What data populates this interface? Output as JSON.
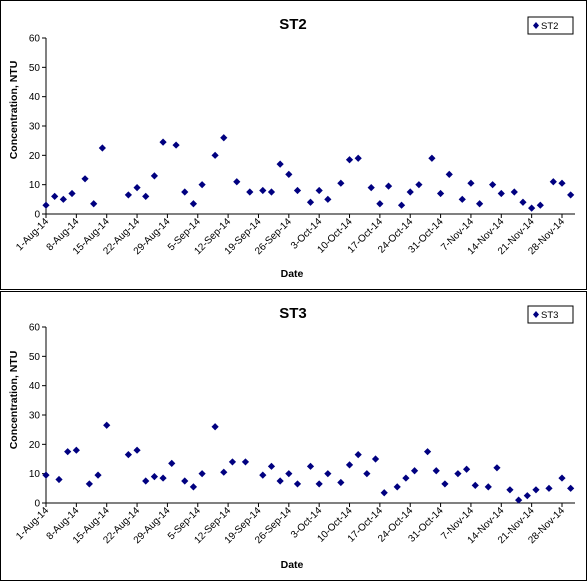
{
  "chart_data": [
    {
      "type": "scatter",
      "title": "ST2",
      "xlabel": "Date",
      "ylabel": "Concentration, NTU",
      "ylim": [
        0,
        60
      ],
      "yticks": [
        0,
        10,
        20,
        30,
        40,
        50,
        60
      ],
      "xlim": [
        "1-Aug-14",
        "1-Dec-14"
      ],
      "xtick_labels": [
        "1-Aug-14",
        "8-Aug-14",
        "15-Aug-14",
        "22-Aug-14",
        "29-Aug-14",
        "5-Sep-14",
        "12-Sep-14",
        "19-Sep-14",
        "26-Sep-14",
        "3-Oct-14",
        "10-Oct-14",
        "17-Oct-14",
        "24-Oct-14",
        "31-Oct-14",
        "7-Nov-14",
        "14-Nov-14",
        "21-Nov-14",
        "28-Nov-14"
      ],
      "grid": false,
      "legend_position": "top-right",
      "series": [
        {
          "name": "ST2",
          "color": "#000080",
          "marker": "diamond",
          "points": [
            [
              "1-Aug-14",
              3
            ],
            [
              "3-Aug-14",
              6
            ],
            [
              "5-Aug-14",
              5
            ],
            [
              "7-Aug-14",
              7
            ],
            [
              "10-Aug-14",
              12
            ],
            [
              "12-Aug-14",
              3.5
            ],
            [
              "14-Aug-14",
              22.5
            ],
            [
              "20-Aug-14",
              6.5
            ],
            [
              "22-Aug-14",
              9
            ],
            [
              "24-Aug-14",
              6
            ],
            [
              "26-Aug-14",
              13
            ],
            [
              "28-Aug-14",
              24.5
            ],
            [
              "31-Aug-14",
              23.5
            ],
            [
              "2-Sep-14",
              7.5
            ],
            [
              "4-Sep-14",
              3.5
            ],
            [
              "6-Sep-14",
              10
            ],
            [
              "9-Sep-14",
              20
            ],
            [
              "11-Sep-14",
              26
            ],
            [
              "14-Sep-14",
              11
            ],
            [
              "17-Sep-14",
              7.5
            ],
            [
              "20-Sep-14",
              8
            ],
            [
              "22-Sep-14",
              7.5
            ],
            [
              "24-Sep-14",
              17
            ],
            [
              "26-Sep-14",
              13.5
            ],
            [
              "28-Sep-14",
              8
            ],
            [
              "1-Oct-14",
              4
            ],
            [
              "3-Oct-14",
              8
            ],
            [
              "5-Oct-14",
              5
            ],
            [
              "8-Oct-14",
              10.5
            ],
            [
              "10-Oct-14",
              18.5
            ],
            [
              "12-Oct-14",
              19
            ],
            [
              "15-Oct-14",
              9
            ],
            [
              "17-Oct-14",
              3.5
            ],
            [
              "19-Oct-14",
              9.5
            ],
            [
              "22-Oct-14",
              3
            ],
            [
              "24-Oct-14",
              7.5
            ],
            [
              "26-Oct-14",
              10
            ],
            [
              "29-Oct-14",
              19
            ],
            [
              "31-Oct-14",
              7
            ],
            [
              "2-Nov-14",
              13.5
            ],
            [
              "5-Nov-14",
              5
            ],
            [
              "7-Nov-14",
              10.5
            ],
            [
              "9-Nov-14",
              3.5
            ],
            [
              "12-Nov-14",
              10
            ],
            [
              "14-Nov-14",
              7
            ],
            [
              "17-Nov-14",
              7.5
            ],
            [
              "19-Nov-14",
              4
            ],
            [
              "21-Nov-14",
              2
            ],
            [
              "23-Nov-14",
              3
            ],
            [
              "26-Nov-14",
              11
            ],
            [
              "28-Nov-14",
              10.5
            ],
            [
              "30-Nov-14",
              6.5
            ]
          ]
        }
      ]
    },
    {
      "type": "scatter",
      "title": "ST3",
      "xlabel": "Date",
      "ylabel": "Concentration, NTU",
      "ylim": [
        0,
        60
      ],
      "yticks": [
        0,
        10,
        20,
        30,
        40,
        50,
        60
      ],
      "xlim": [
        "1-Aug-14",
        "1-Dec-14"
      ],
      "xtick_labels": [
        "1-Aug-14",
        "8-Aug-14",
        "15-Aug-14",
        "22-Aug-14",
        "29-Aug-14",
        "5-Sep-14",
        "12-Sep-14",
        "19-Sep-14",
        "26-Sep-14",
        "3-Oct-14",
        "10-Oct-14",
        "17-Oct-14",
        "24-Oct-14",
        "31-Oct-14",
        "7-Nov-14",
        "14-Nov-14",
        "21-Nov-14",
        "28-Nov-14"
      ],
      "grid": false,
      "legend_position": "top-right",
      "series": [
        {
          "name": "ST3",
          "color": "#000080",
          "marker": "diamond",
          "points": [
            [
              "1-Aug-14",
              9.5
            ],
            [
              "4-Aug-14",
              8
            ],
            [
              "6-Aug-14",
              17.5
            ],
            [
              "8-Aug-14",
              18
            ],
            [
              "11-Aug-14",
              6.5
            ],
            [
              "13-Aug-14",
              9.5
            ],
            [
              "15-Aug-14",
              26.5
            ],
            [
              "20-Aug-14",
              16.5
            ],
            [
              "22-Aug-14",
              18
            ],
            [
              "24-Aug-14",
              7.5
            ],
            [
              "26-Aug-14",
              9
            ],
            [
              "28-Aug-14",
              8.5
            ],
            [
              "30-Aug-14",
              13.5
            ],
            [
              "2-Sep-14",
              7.5
            ],
            [
              "4-Sep-14",
              5.5
            ],
            [
              "6-Sep-14",
              10
            ],
            [
              "9-Sep-14",
              26
            ],
            [
              "11-Sep-14",
              10.5
            ],
            [
              "13-Sep-14",
              14
            ],
            [
              "16-Sep-14",
              14
            ],
            [
              "20-Sep-14",
              9.5
            ],
            [
              "22-Sep-14",
              12.5
            ],
            [
              "24-Sep-14",
              7.5
            ],
            [
              "26-Sep-14",
              10
            ],
            [
              "28-Sep-14",
              6.5
            ],
            [
              "1-Oct-14",
              12.5
            ],
            [
              "3-Oct-14",
              6.5
            ],
            [
              "5-Oct-14",
              10
            ],
            [
              "8-Oct-14",
              7
            ],
            [
              "10-Oct-14",
              13
            ],
            [
              "12-Oct-14",
              16.5
            ],
            [
              "14-Oct-14",
              10
            ],
            [
              "16-Oct-14",
              15
            ],
            [
              "18-Oct-14",
              3.5
            ],
            [
              "21-Oct-14",
              5.5
            ],
            [
              "23-Oct-14",
              8.5
            ],
            [
              "25-Oct-14",
              11
            ],
            [
              "28-Oct-14",
              17.5
            ],
            [
              "30-Oct-14",
              11
            ],
            [
              "1-Nov-14",
              6.5
            ],
            [
              "4-Nov-14",
              10
            ],
            [
              "6-Nov-14",
              11.5
            ],
            [
              "8-Nov-14",
              6
            ],
            [
              "11-Nov-14",
              5.5
            ],
            [
              "13-Nov-14",
              12
            ],
            [
              "16-Nov-14",
              4.5
            ],
            [
              "18-Nov-14",
              1
            ],
            [
              "20-Nov-14",
              2.5
            ],
            [
              "22-Nov-14",
              4.5
            ],
            [
              "25-Nov-14",
              5
            ],
            [
              "28-Nov-14",
              8.5
            ],
            [
              "30-Nov-14",
              5
            ]
          ]
        }
      ]
    }
  ]
}
